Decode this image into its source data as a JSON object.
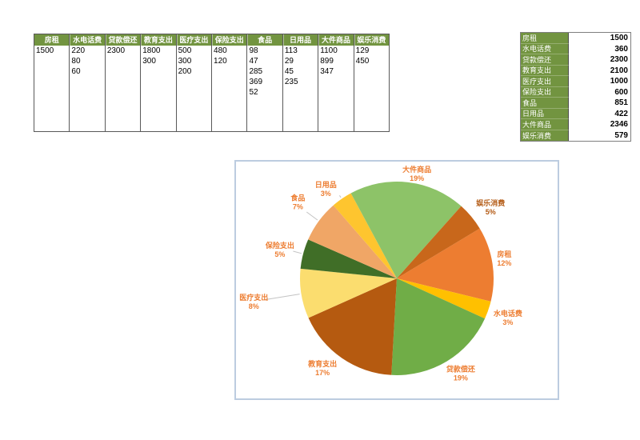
{
  "expense_table": {
    "columns": [
      {
        "header": "房租",
        "values": [
          "1500"
        ]
      },
      {
        "header": "水电话费",
        "values": [
          "220",
          "80",
          "60"
        ]
      },
      {
        "header": "贷款偿还",
        "values": [
          "2300"
        ]
      },
      {
        "header": "教育支出",
        "values": [
          "1800",
          "300"
        ]
      },
      {
        "header": "医疗支出",
        "values": [
          "500",
          "300",
          "200"
        ]
      },
      {
        "header": "保险支出",
        "values": [
          "480",
          "120"
        ]
      },
      {
        "header": "食品",
        "values": [
          "98",
          "47",
          "285",
          "369",
          "52"
        ]
      },
      {
        "header": "日用品",
        "values": [
          "113",
          "29",
          "45",
          "235"
        ]
      },
      {
        "header": "大件商品",
        "values": [
          "1100",
          "899",
          "347"
        ]
      },
      {
        "header": "娱乐消费",
        "values": [
          "129",
          "450"
        ]
      }
    ]
  },
  "summary_table": {
    "rows": [
      {
        "label": "房租",
        "value": "1500"
      },
      {
        "label": "水电话费",
        "value": "360"
      },
      {
        "label": "贷款偿还",
        "value": "2300"
      },
      {
        "label": "教育支出",
        "value": "2100"
      },
      {
        "label": "医疗支出",
        "value": "1000"
      },
      {
        "label": "保险支出",
        "value": "600"
      },
      {
        "label": "食品",
        "value": "851"
      },
      {
        "label": "日用品",
        "value": "422"
      },
      {
        "label": "大件商品",
        "value": "2346"
      },
      {
        "label": "娱乐消费",
        "value": "579"
      }
    ]
  },
  "chart_data": {
    "type": "pie",
    "categories": [
      "房租",
      "水电话费",
      "贷款偿还",
      "教育支出",
      "医疗支出",
      "保险支出",
      "食品",
      "日用品",
      "大件商品",
      "娱乐消费"
    ],
    "values": [
      1500,
      360,
      2300,
      2100,
      1000,
      600,
      851,
      422,
      2346,
      579
    ],
    "percent_labels": [
      "12%",
      "3%",
      "19%",
      "17%",
      "8%",
      "5%",
      "7%",
      "3%",
      "19%",
      "5%"
    ],
    "slice_colors": [
      "#ED7D31",
      "#FFC000",
      "#70AD47",
      "#B55A10",
      "#FBDD6F",
      "#406E27",
      "#F0A666",
      "#FEC52F",
      "#8DC368",
      "#C8671B"
    ],
    "label_color": "#ED7D31",
    "emphasized_category": "娱乐消费",
    "emphasized_label_color": "#B35A14",
    "leader_line_color": "#c3c3c3",
    "start_angle_deg": 59,
    "legend_position": "none",
    "labels_outside": true,
    "title": ""
  },
  "colors": {
    "header_green": "#729440",
    "table_border": "#595959",
    "chart_panel_border": "#bccce0",
    "background": "#ffffff"
  }
}
